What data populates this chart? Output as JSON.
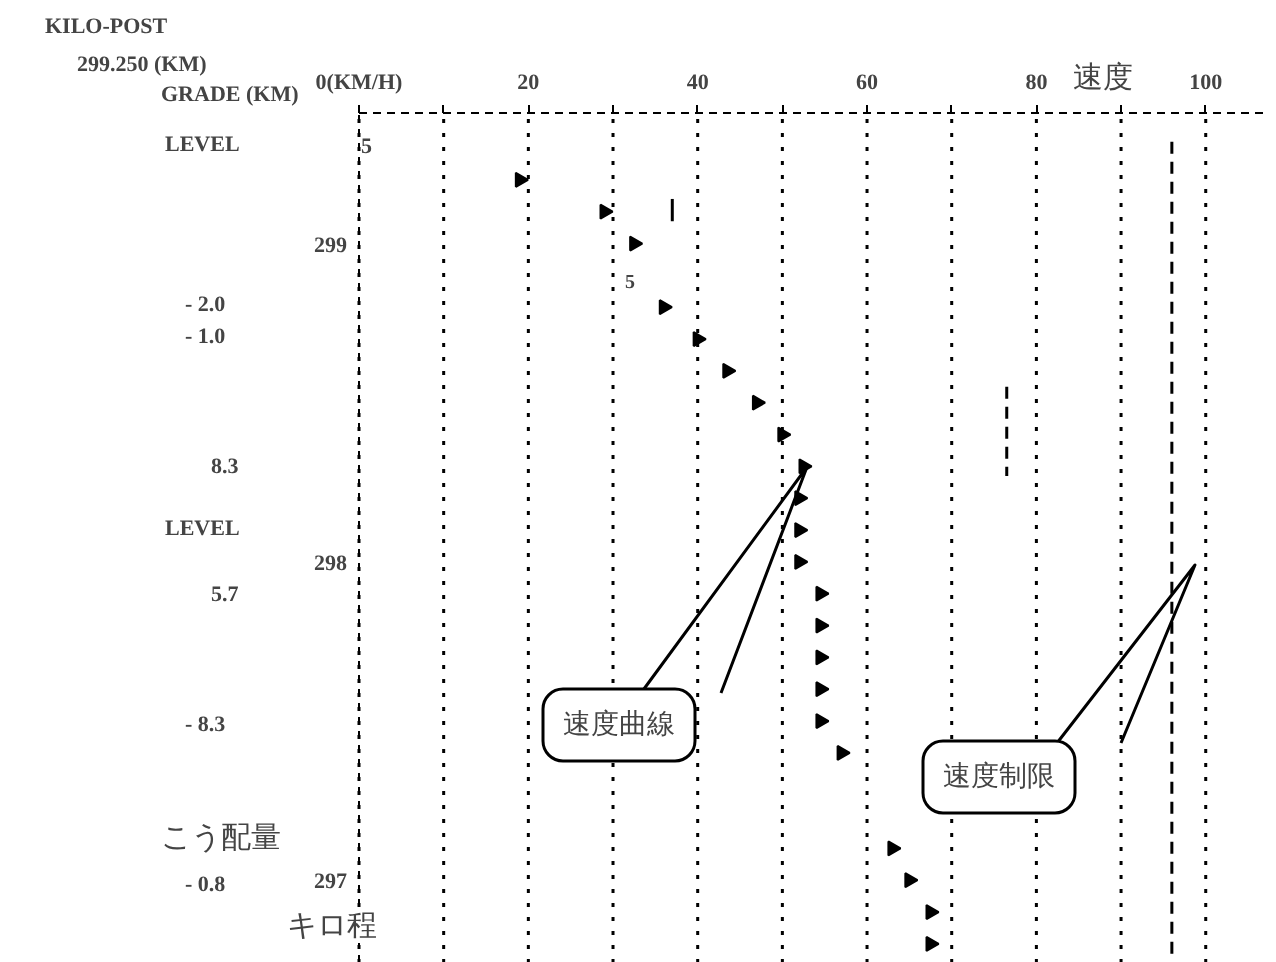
{
  "chart_data": {
    "type": "scatter",
    "xlabel": "速度",
    "ylabel": "キロ程",
    "y2label": "こう配量",
    "annotations": [
      "KILO-POST",
      "299.250 (KM)",
      "GRADE (KM)",
      "LEVEL",
      "5",
      "5",
      "- 2.0",
      "- 1.0",
      "8.3",
      "LEVEL",
      "5.7",
      "- 8.3",
      "- 0.8",
      "速度曲線",
      "速度制限"
    ],
    "xlim": [
      0,
      107
    ],
    "xticks": [
      {
        "value": 0,
        "label": "0(KM/H)"
      },
      {
        "value": 10,
        "label": null
      },
      20,
      {
        "value": 30,
        "label": null
      },
      40,
      {
        "value": 50,
        "label": null
      },
      60,
      {
        "value": 70,
        "label": null
      },
      80,
      {
        "value": 90,
        "label": null
      },
      100
    ],
    "ylim": [
      296.74,
      299.41
    ],
    "yticks": [
      299,
      298,
      297
    ],
    "grid": "x",
    "series": [
      {
        "color": "#000000",
        "marker": "triangle",
        "x": [
          19,
          29,
          32.5,
          36,
          40,
          43.5,
          47,
          50,
          52.5,
          52,
          52,
          52,
          54.5,
          54.5,
          54.5,
          54.5,
          54.5,
          57,
          63,
          65,
          67.5,
          67.5
        ],
        "values": [
          299.2,
          299.1,
          299.0,
          298.8,
          298.7,
          298.6,
          298.5,
          298.4,
          298.3,
          298.2,
          298.1,
          298.0,
          297.9,
          297.8,
          297.7,
          297.6,
          297.5,
          297.4,
          297.1,
          297.0,
          296.9,
          296.8
        ]
      },
      {
        "type": "line",
        "color": "#000000",
        "line_style": "dashed",
        "x": [
          96,
          96
        ],
        "values": [
          299.32,
          296.75
        ]
      },
      {
        "type": "line",
        "color": "#000000",
        "line_style": "dashed",
        "x": [
          76.5,
          76.5
        ],
        "values": [
          298.55,
          298.27
        ]
      },
      {
        "type": "line",
        "color": "#000000",
        "line_style": "solid",
        "x": [
          37,
          37
        ],
        "values": [
          299.14,
          299.07
        ]
      }
    ]
  }
}
